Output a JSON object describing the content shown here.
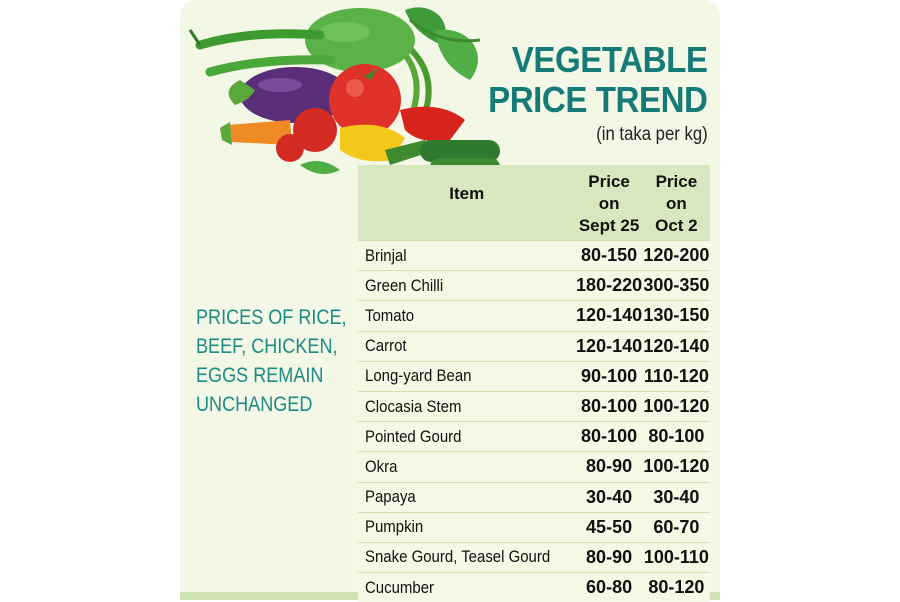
{
  "title": {
    "line1": "VEGETABLE",
    "line2": "PRICE TREND",
    "unit": "(in taka per kg)"
  },
  "side_note": {
    "lines": [
      "PRICES OF RICE,",
      "BEEF, CHICKEN,",
      "EGGS REMAIN",
      "UNCHANGED"
    ]
  },
  "colors": {
    "title": "#167a77",
    "header_bg": "#d7e8bf",
    "panel_bg": "#f3f7e6"
  },
  "illustration": {
    "icon": "vegetables-illustration"
  },
  "chart_data": {
    "type": "table",
    "title": "VEGETABLE PRICE TREND",
    "subtitle": "(in taka per kg)",
    "columns": [
      "Item",
      "Price on Sept 25",
      "Price on Oct 2"
    ],
    "headers": {
      "item": "Item",
      "sept_line1": "Price on",
      "sept_line2": "Sept 25",
      "oct_line1": "Price on",
      "oct_line2": "Oct 2"
    },
    "rows": [
      {
        "item": "Brinjal",
        "sept25": "80-150",
        "oct2": "120-200"
      },
      {
        "item": "Green Chilli",
        "sept25": "180-220",
        "oct2": "300-350"
      },
      {
        "item": "Tomato",
        "sept25": "120-140",
        "oct2": "130-150"
      },
      {
        "item": "Carrot",
        "sept25": "120-140",
        "oct2": "120-140"
      },
      {
        "item": "Long-yard Bean",
        "sept25": "90-100",
        "oct2": "110-120"
      },
      {
        "item": "Clocasia Stem",
        "sept25": "80-100",
        "oct2": "100-120"
      },
      {
        "item": "Pointed Gourd",
        "sept25": "80-100",
        "oct2": "80-100"
      },
      {
        "item": "Okra",
        "sept25": "80-90",
        "oct2": "100-120"
      },
      {
        "item": "Papaya",
        "sept25": "30-40",
        "oct2": "30-40"
      },
      {
        "item": "Pumpkin",
        "sept25": "45-50",
        "oct2": "60-70"
      },
      {
        "item": "Snake Gourd, Teasel Gourd",
        "sept25": "80-90",
        "oct2": "100-110"
      },
      {
        "item": "Cucumber",
        "sept25": "60-80",
        "oct2": "80-120"
      }
    ]
  }
}
